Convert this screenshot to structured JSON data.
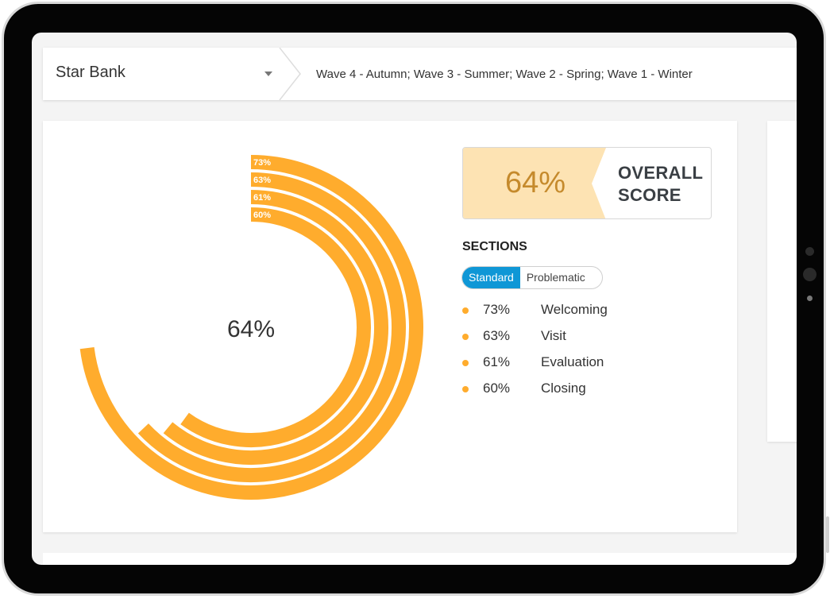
{
  "header": {
    "bank_name": "Star Bank",
    "waves": "Wave 4 - Autumn; Wave 3 - Summer; Wave 2 - Spring; Wave 1 - Winter"
  },
  "overall": {
    "value": "64%",
    "label_line1": "OVERALL",
    "label_line2": "SCORE"
  },
  "sections": {
    "title": "SECTIONS",
    "tabs": [
      {
        "label": "Standard",
        "active": true
      },
      {
        "label": "Problematic",
        "active": false
      }
    ],
    "items": [
      {
        "value": "73%",
        "name": "Welcoming"
      },
      {
        "value": "63%",
        "name": "Visit"
      },
      {
        "value": "61%",
        "name": "Evaluation"
      },
      {
        "value": "60%",
        "name": "Closing"
      }
    ]
  },
  "colors": {
    "accent": "#ffac2d",
    "score_bg": "#fde3b3",
    "tab_active": "#0f97d6"
  },
  "chart_data": {
    "type": "radial-bar",
    "center_label": "64%",
    "max": 100,
    "categories": [
      "Welcoming",
      "Visit",
      "Evaluation",
      "Closing"
    ],
    "values": [
      73,
      63,
      61,
      60
    ],
    "labels": [
      "73%",
      "63%",
      "61%",
      "60%"
    ]
  }
}
